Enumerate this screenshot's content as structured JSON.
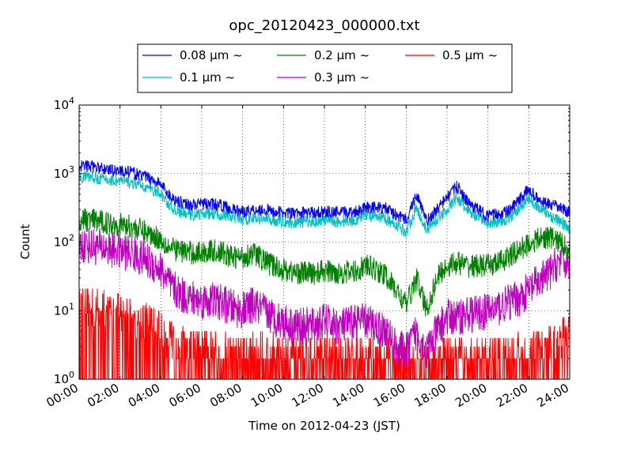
{
  "chart_data": {
    "type": "line",
    "title": "opc_20120423_000000.txt",
    "xlabel": "Time on 2012-04-23 (JST)",
    "ylabel": "Count",
    "yscale": "log",
    "ylim": [
      1,
      10000
    ],
    "xlim": [
      "00:00",
      "24:00"
    ],
    "grid": true,
    "legend_position": "top-center",
    "x_ticks": [
      "00:00",
      "02:00",
      "04:00",
      "06:00",
      "08:00",
      "10:00",
      "12:00",
      "14:00",
      "16:00",
      "18:00",
      "20:00",
      "22:00",
      "24:00"
    ],
    "y_ticks": [
      {
        "value": 1,
        "base": "10",
        "exp": "0"
      },
      {
        "value": 10,
        "base": "10",
        "exp": "1"
      },
      {
        "value": 100,
        "base": "10",
        "exp": "2"
      },
      {
        "value": 1000,
        "base": "10",
        "exp": "3"
      },
      {
        "value": 10000,
        "base": "10",
        "exp": "4"
      }
    ],
    "x_hours": [
      0,
      0.5,
      1,
      1.5,
      2,
      2.5,
      3,
      3.5,
      4,
      4.5,
      5,
      5.5,
      6,
      6.5,
      7,
      7.5,
      8,
      8.5,
      9,
      9.5,
      10,
      10.5,
      11,
      11.5,
      12,
      12.5,
      13,
      13.5,
      14,
      14.5,
      15,
      15.5,
      16,
      16.5,
      17,
      17.5,
      18,
      18.5,
      19,
      19.5,
      20,
      20.5,
      21,
      21.5,
      22,
      22.5,
      23,
      23.5,
      24
    ],
    "series": [
      {
        "name": "0.08 µm ~",
        "color": "#0000ff",
        "values": [
          1300,
          1300,
          1200,
          1150,
          1100,
          1050,
          950,
          850,
          700,
          450,
          380,
          350,
          360,
          360,
          340,
          300,
          280,
          300,
          300,
          280,
          270,
          260,
          270,
          270,
          280,
          270,
          270,
          280,
          330,
          320,
          310,
          250,
          210,
          500,
          200,
          300,
          450,
          650,
          380,
          300,
          240,
          260,
          280,
          400,
          600,
          400,
          350,
          320,
          270
        ]
      },
      {
        "name": "0.1 µm ~",
        "color": "#00bfbf",
        "values": [
          900,
          900,
          850,
          800,
          780,
          740,
          680,
          600,
          500,
          320,
          270,
          250,
          260,
          260,
          250,
          230,
          210,
          230,
          220,
          210,
          200,
          190,
          200,
          200,
          210,
          200,
          200,
          210,
          260,
          230,
          220,
          180,
          140,
          320,
          150,
          220,
          300,
          450,
          280,
          230,
          190,
          200,
          220,
          300,
          450,
          310,
          250,
          200,
          160
        ]
      },
      {
        "name": "0.2 µm ~",
        "color": "#008000",
        "values": [
          210,
          210,
          200,
          190,
          180,
          170,
          150,
          130,
          110,
          80,
          75,
          70,
          70,
          75,
          70,
          60,
          60,
          70,
          55,
          45,
          40,
          36,
          36,
          35,
          38,
          36,
          36,
          37,
          45,
          40,
          32,
          20,
          12,
          30,
          10,
          30,
          45,
          50,
          45,
          45,
          45,
          50,
          60,
          75,
          95,
          110,
          120,
          100,
          80
        ]
      },
      {
        "name": "0.3 µm ~",
        "color": "#bf00bf",
        "values": [
          90,
          90,
          85,
          80,
          75,
          70,
          60,
          50,
          40,
          22,
          17,
          15,
          14,
          14,
          13,
          11,
          10,
          12,
          10,
          8,
          7,
          6,
          6,
          6,
          7,
          6,
          6,
          7,
          7,
          6,
          5,
          3,
          2.5,
          5,
          2.5,
          5,
          8,
          8,
          9,
          9,
          10,
          11,
          13,
          15,
          20,
          26,
          35,
          55,
          50
        ]
      },
      {
        "name": "0.5 µm ~",
        "color": "#ff0000",
        "values": [
          8,
          9,
          8.5,
          8,
          7.5,
          7,
          6,
          5,
          4,
          3,
          2.5,
          2.2,
          2,
          2,
          2,
          2,
          1.9,
          1.9,
          1.9,
          1.9,
          1.8,
          1.8,
          1.8,
          1.8,
          1.8,
          1.8,
          1.8,
          1.8,
          1.8,
          1.8,
          1.8,
          1.6,
          1.5,
          1.7,
          1.5,
          1.6,
          1.7,
          1.7,
          1.7,
          1.7,
          1.7,
          1.7,
          1.8,
          1.9,
          2,
          2.2,
          2.5,
          3,
          3.5
        ]
      }
    ]
  }
}
